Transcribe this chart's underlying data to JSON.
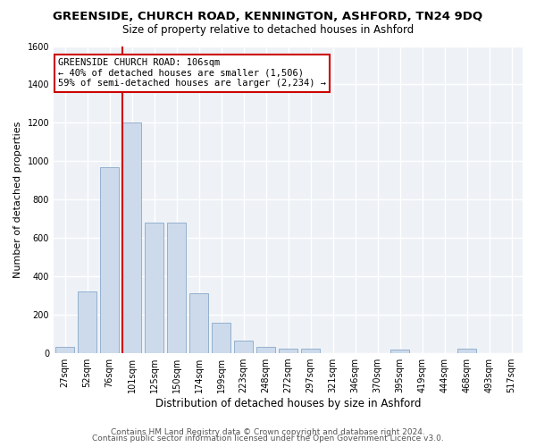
{
  "title1": "GREENSIDE, CHURCH ROAD, KENNINGTON, ASHFORD, TN24 9DQ",
  "title2": "Size of property relative to detached houses in Ashford",
  "xlabel": "Distribution of detached houses by size in Ashford",
  "ylabel": "Number of detached properties",
  "categories": [
    "27sqm",
    "52sqm",
    "76sqm",
    "101sqm",
    "125sqm",
    "150sqm",
    "174sqm",
    "199sqm",
    "223sqm",
    "248sqm",
    "272sqm",
    "297sqm",
    "321sqm",
    "346sqm",
    "370sqm",
    "395sqm",
    "419sqm",
    "444sqm",
    "468sqm",
    "493sqm",
    "517sqm"
  ],
  "values": [
    30,
    320,
    970,
    1200,
    680,
    680,
    310,
    155,
    65,
    30,
    20,
    20,
    0,
    0,
    0,
    15,
    0,
    0,
    20,
    0,
    0
  ],
  "bar_color": "#ccdaeb",
  "bar_edge_color": "#89a8c8",
  "vline_x_index": 3,
  "vline_color": "#cc0000",
  "annotation_text_line1": "GREENSIDE CHURCH ROAD: 106sqm",
  "annotation_text_line2": "← 40% of detached houses are smaller (1,506)",
  "annotation_text_line3": "59% of semi-detached houses are larger (2,234) →",
  "annotation_box_color": "#cc0000",
  "ylim": [
    0,
    1600
  ],
  "yticks": [
    0,
    200,
    400,
    600,
    800,
    1000,
    1200,
    1400,
    1600
  ],
  "footer1": "Contains HM Land Registry data © Crown copyright and database right 2024.",
  "footer2": "Contains public sector information licensed under the Open Government Licence v3.0.",
  "bg_color": "#eef2f7",
  "grid_color": "#ffffff",
  "title1_fontsize": 9.5,
  "title2_fontsize": 8.5,
  "xlabel_fontsize": 8.5,
  "ylabel_fontsize": 8,
  "tick_fontsize": 7,
  "ann_fontsize": 7.5,
  "footer_fontsize": 6.5
}
